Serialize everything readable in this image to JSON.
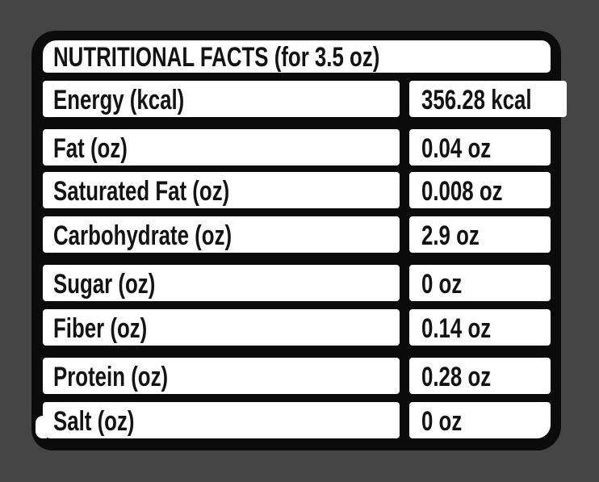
{
  "label": {
    "title": "NUTRITIONAL FACTS (for 3.5 oz)",
    "rows": [
      {
        "label": "Energy (kcal)",
        "value": "356.28 kcal"
      },
      {
        "label": "Fat (oz)",
        "value": "0.04 oz"
      },
      {
        "label": "Saturated Fat (oz)",
        "value": "0.008 oz"
      },
      {
        "label": "Carbohydrate (oz)",
        "value": "2.9 oz"
      },
      {
        "label": "Sugar (oz)",
        "value": "0 oz"
      },
      {
        "label": "Fiber (oz)",
        "value": "0.14 oz"
      },
      {
        "label": "Protein (oz)",
        "value": "0.28 oz"
      },
      {
        "label": "Salt (oz)",
        "value": "0 oz"
      }
    ]
  },
  "colors": {
    "background": "#454545",
    "border_ink": "#0b0b0b",
    "cell": "#ffffff",
    "text": "#131313"
  }
}
